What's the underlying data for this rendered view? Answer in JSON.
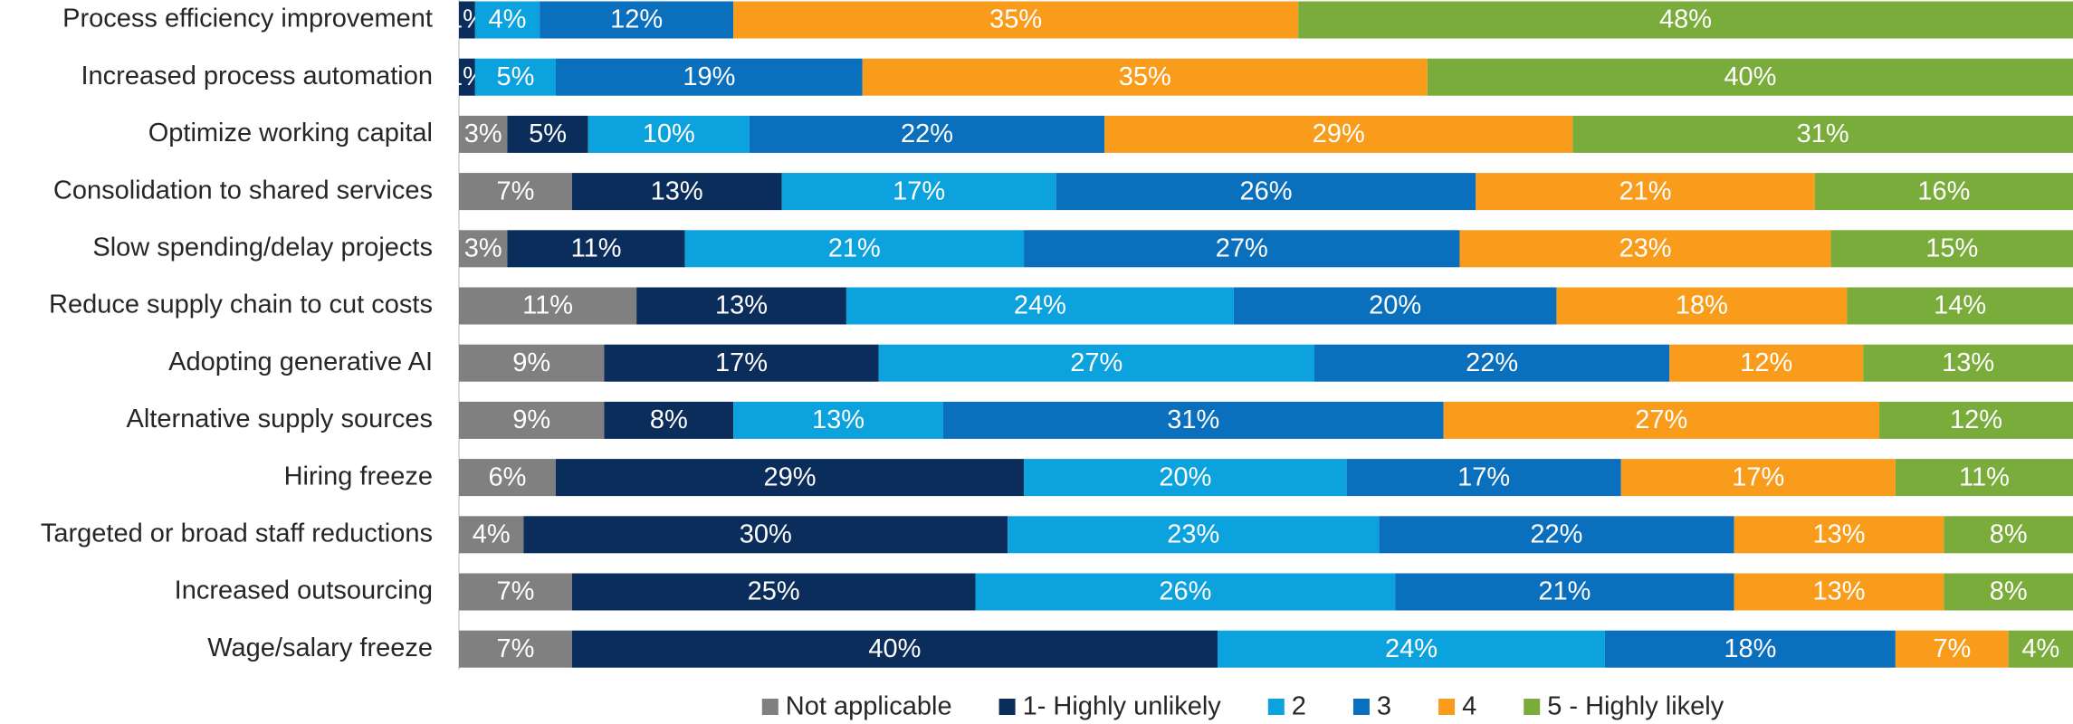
{
  "chart_data": {
    "type": "stacked-bar-horizontal",
    "categories": [
      "Process efficiency improvement",
      "Increased process automation",
      "Optimize working capital",
      "Consolidation to shared services",
      "Slow spending/delay projects",
      "Reduce supply chain to cut costs",
      "Adopting generative AI",
      "Alternative supply sources",
      "Hiring freeze",
      "Targeted or broad staff reductions",
      "Increased outsourcing",
      "Wage/salary freeze"
    ],
    "xlim": [
      0,
      100
    ],
    "legend": "bottom",
    "series": [
      {
        "name": "Not applicable",
        "color": "#808080",
        "values": [
          0,
          0,
          3,
          7,
          3,
          11,
          9,
          9,
          6,
          4,
          7,
          7
        ],
        "value_labels": [
          null,
          null,
          "3%",
          "7%",
          "3%",
          "11%",
          "9%",
          "9%",
          "6%",
          "4%",
          "7%",
          "7%"
        ]
      },
      {
        "name": "1- Highly unlikely",
        "color": "#0b2d5b",
        "values": [
          1,
          1,
          5,
          13,
          11,
          13,
          17,
          8,
          29,
          30,
          25,
          40
        ],
        "value_labels": [
          "1%",
          "1%",
          "5%",
          "13%",
          "11%",
          "13%",
          "17%",
          "8%",
          "29%",
          "30%",
          "25%",
          "40%"
        ]
      },
      {
        "name": "2",
        "color": "#0ba2de",
        "values": [
          4,
          5,
          10,
          17,
          21,
          24,
          27,
          13,
          20,
          23,
          26,
          24
        ],
        "value_labels": [
          "4%",
          "5%",
          "10%",
          "17%",
          "21%",
          "24%",
          "27%",
          "13%",
          "20%",
          "23%",
          "26%",
          "24%"
        ]
      },
      {
        "name": "3",
        "color": "#0a6fbd",
        "values": [
          12,
          19,
          22,
          26,
          27,
          20,
          22,
          31,
          17,
          22,
          21,
          18
        ],
        "value_labels": [
          "12%",
          "19%",
          "22%",
          "26%",
          "27%",
          "20%",
          "22%",
          "31%",
          "17%",
          "22%",
          "21%",
          "18%"
        ]
      },
      {
        "name": "4",
        "color": "#fa9c1b",
        "values": [
          35,
          35,
          29,
          21,
          23,
          18,
          12,
          27,
          17,
          13,
          13,
          7
        ],
        "value_labels": [
          "35%",
          "35%",
          "29%",
          "21%",
          "23%",
          "18%",
          "12%",
          "27%",
          "17%",
          "13%",
          "13%",
          "7%"
        ]
      },
      {
        "name": "5 - Highly likely",
        "color": "#79ac3a",
        "values": [
          48,
          40,
          31,
          16,
          15,
          14,
          13,
          12,
          11,
          8,
          8,
          4
        ],
        "value_labels": [
          "48%",
          "40%",
          "31%",
          "16%",
          "15%",
          "14%",
          "13%",
          "12%",
          "11%",
          "8%",
          "8%",
          "4%"
        ]
      }
    ]
  }
}
